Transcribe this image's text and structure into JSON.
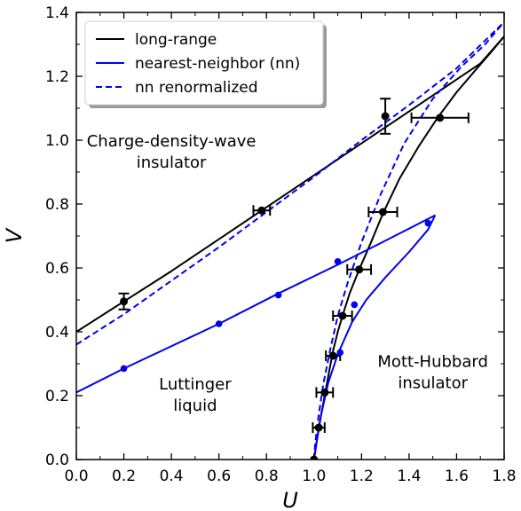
{
  "chart_data": {
    "type": "line",
    "title": "",
    "xlabel": "U",
    "ylabel": "V",
    "xlim": [
      0.0,
      1.8
    ],
    "ylim": [
      0.0,
      1.4
    ],
    "x_ticks": [
      "0.0",
      "0.2",
      "0.4",
      "0.6",
      "0.8",
      "1.0",
      "1.2",
      "1.4",
      "1.6",
      "1.8"
    ],
    "y_ticks": [
      "0.0",
      "0.2",
      "0.4",
      "0.6",
      "0.8",
      "1.0",
      "1.2",
      "1.4"
    ],
    "grid": false,
    "legend_position": "top-left",
    "legend": [
      {
        "label": "long-range",
        "color": "#000000",
        "style": "solid"
      },
      {
        "label": "nearest-neighbor (nn)",
        "color": "#0000ee",
        "style": "solid"
      },
      {
        "label": "nn renormalized",
        "color": "#0000ee",
        "style": "dashed"
      }
    ],
    "region_labels": [
      {
        "lines": [
          "Charge-density-wave",
          "insulator"
        ],
        "u": 0.4,
        "v": 0.98
      },
      {
        "lines": [
          "Luttinger",
          "liquid"
        ],
        "u": 0.5,
        "v": 0.22
      },
      {
        "lines": [
          "Mott-Hubbard",
          "insulator"
        ],
        "u": 1.5,
        "v": 0.29
      }
    ],
    "series": [
      {
        "name": "long-range",
        "color": "#000000",
        "style": "solid",
        "curves": [
          [
            [
              0.0,
              0.4
            ],
            [
              0.2,
              0.495
            ],
            [
              0.4,
              0.59
            ],
            [
              0.6,
              0.69
            ],
            [
              0.78,
              0.78
            ],
            [
              1.0,
              0.89
            ],
            [
              1.2,
              0.99
            ],
            [
              1.3,
              1.04
            ],
            [
              1.5,
              1.14
            ],
            [
              1.7,
              1.24
            ],
            [
              1.8,
              1.325
            ]
          ],
          [
            [
              1.0,
              0.0
            ],
            [
              1.01,
              0.05
            ],
            [
              1.02,
              0.1
            ],
            [
              1.04,
              0.18
            ],
            [
              1.06,
              0.26
            ],
            [
              1.08,
              0.34
            ],
            [
              1.1,
              0.4
            ],
            [
              1.12,
              0.45
            ],
            [
              1.15,
              0.52
            ],
            [
              1.19,
              0.595
            ],
            [
              1.24,
              0.68
            ],
            [
              1.29,
              0.77
            ],
            [
              1.36,
              0.88
            ],
            [
              1.44,
              0.98
            ],
            [
              1.52,
              1.07
            ],
            [
              1.6,
              1.15
            ],
            [
              1.68,
              1.22
            ],
            [
              1.75,
              1.28
            ],
            [
              1.8,
              1.325
            ]
          ]
        ],
        "points": [
          {
            "u": 0.2,
            "v": 0.495,
            "v_err": 0.025
          },
          {
            "u": 0.78,
            "v": 0.78,
            "u_err": 0.035
          },
          {
            "u": 1.3,
            "v": 1.075,
            "v_err": 0.055
          },
          {
            "u": 1.53,
            "v": 1.07,
            "u_err": 0.12
          },
          {
            "u": 1.29,
            "v": 0.775,
            "u_err": 0.06
          },
          {
            "u": 1.19,
            "v": 0.595,
            "u_err": 0.05
          },
          {
            "u": 1.12,
            "v": 0.45,
            "u_err": 0.04
          },
          {
            "u": 1.08,
            "v": 0.325,
            "u_err": 0.03
          },
          {
            "u": 1.045,
            "v": 0.21,
            "u_err": 0.035
          },
          {
            "u": 1.02,
            "v": 0.1,
            "u_err": 0.025
          },
          {
            "u": 1.0,
            "v": 0.0
          }
        ]
      },
      {
        "name": "nearest-neighbor (nn)",
        "color": "#0000ee",
        "style": "solid",
        "curves": [
          [
            [
              0.0,
              0.21
            ],
            [
              0.2,
              0.285
            ],
            [
              0.6,
              0.425
            ],
            [
              0.85,
              0.52
            ],
            [
              1.1,
              0.61
            ],
            [
              1.3,
              0.685
            ],
            [
              1.51,
              0.765
            ]
          ],
          [
            [
              1.0,
              0.0
            ],
            [
              1.01,
              0.05
            ],
            [
              1.03,
              0.14
            ],
            [
              1.06,
              0.24
            ],
            [
              1.1,
              0.33
            ],
            [
              1.16,
              0.43
            ],
            [
              1.22,
              0.5
            ],
            [
              1.3,
              0.57
            ],
            [
              1.4,
              0.65
            ],
            [
              1.48,
              0.72
            ],
            [
              1.51,
              0.765
            ]
          ]
        ],
        "points": [
          {
            "u": 0.2,
            "v": 0.285
          },
          {
            "u": 0.6,
            "v": 0.425
          },
          {
            "u": 0.85,
            "v": 0.515
          },
          {
            "u": 1.1,
            "v": 0.62
          },
          {
            "u": 1.48,
            "v": 0.74
          },
          {
            "u": 1.11,
            "v": 0.335
          },
          {
            "u": 1.17,
            "v": 0.485
          }
        ]
      },
      {
        "name": "nn renormalized",
        "color": "#0000ee",
        "style": "dashed",
        "curves": [
          [
            [
              0.0,
              0.36
            ],
            [
              0.2,
              0.455
            ],
            [
              0.4,
              0.56
            ],
            [
              0.6,
              0.665
            ],
            [
              0.8,
              0.775
            ],
            [
              1.0,
              0.885
            ],
            [
              1.2,
              1.0
            ],
            [
              1.4,
              1.11
            ],
            [
              1.6,
              1.225
            ],
            [
              1.8,
              1.37
            ]
          ],
          [
            [
              1.0,
              0.0
            ],
            [
              1.005,
              0.05
            ],
            [
              1.02,
              0.14
            ],
            [
              1.04,
              0.24
            ],
            [
              1.07,
              0.35
            ],
            [
              1.1,
              0.45
            ],
            [
              1.14,
              0.55
            ],
            [
              1.2,
              0.68
            ],
            [
              1.28,
              0.83
            ],
            [
              1.38,
              0.99
            ],
            [
              1.5,
              1.13
            ],
            [
              1.62,
              1.23
            ],
            [
              1.72,
              1.3
            ],
            [
              1.8,
              1.37
            ]
          ]
        ]
      }
    ]
  }
}
